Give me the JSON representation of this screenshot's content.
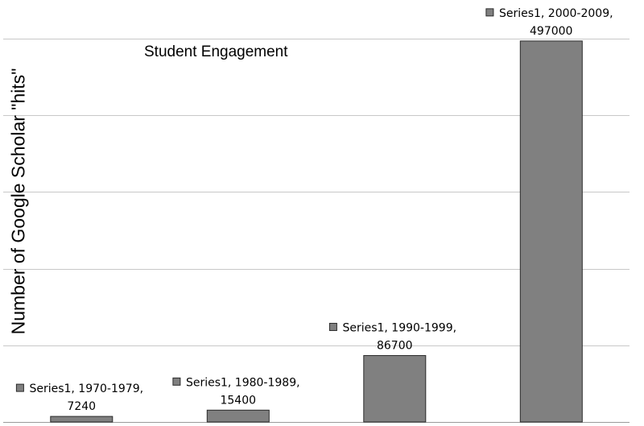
{
  "chart_data": {
    "type": "bar",
    "title": "Student Engagement",
    "xlabel": "",
    "ylabel": "Number of Google Scholar \"hits\"",
    "categories": [
      "1970-1979",
      "1980-1989",
      "1990-1999",
      "2000-2009"
    ],
    "series": [
      {
        "name": "Series1",
        "values": [
          7240,
          15400,
          86700,
          497000
        ],
        "data_labels": [
          [
            "Series1, 1970-1979,",
            "7240"
          ],
          [
            "Series1, 1980-1989,",
            "15400"
          ],
          [
            "Series1, 1990-1999,",
            "86700"
          ],
          [
            "Series1, 2000-2009,",
            "497000"
          ]
        ]
      }
    ],
    "ylim": [
      0,
      500000
    ],
    "gridline_step": 100000,
    "grid": true,
    "legend": "none",
    "tick_labels_visible": false,
    "colors": {
      "bar_fill": "#808080",
      "bar_stroke": "#2b2b2b",
      "gridline": "#c8c8c8",
      "baseline": "#9a9a9a",
      "text": "#000000"
    }
  }
}
